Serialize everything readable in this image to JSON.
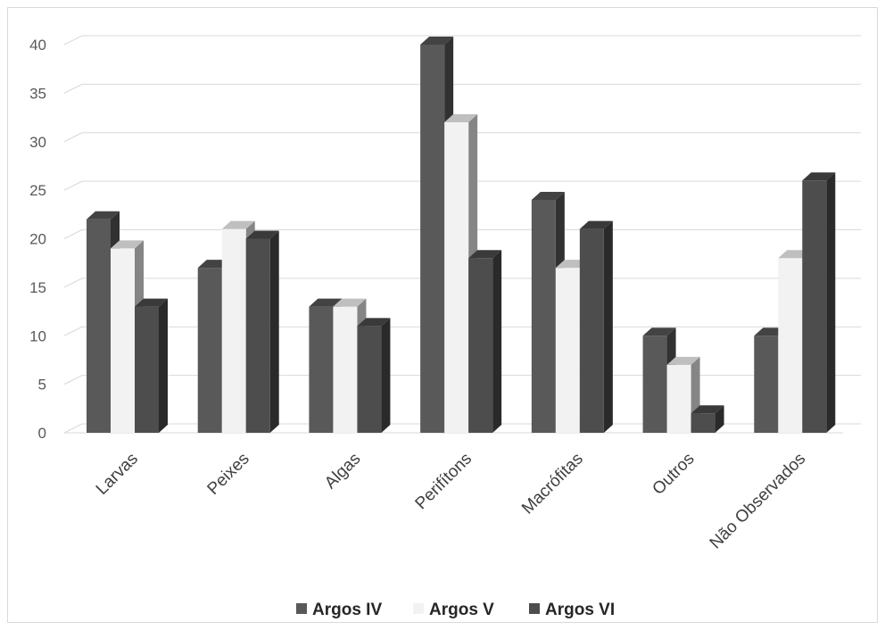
{
  "chart_data": {
    "type": "bar",
    "style": "3d-clustered-column",
    "categories": [
      "Larvas",
      "Peixes",
      "Algas",
      "Perifítons",
      "Macrófitas",
      "Outros",
      "Não Observados"
    ],
    "series": [
      {
        "name": "Argos IV",
        "values": [
          22,
          17,
          13,
          40,
          24,
          10,
          10
        ],
        "color": "#595959"
      },
      {
        "name": "Argos V",
        "values": [
          19,
          21,
          13,
          32,
          17,
          7,
          18
        ],
        "color": "#f2f2f2"
      },
      {
        "name": "Argos VI",
        "values": [
          13,
          20,
          11,
          18,
          21,
          2,
          26
        ],
        "color": "#4d4d4d"
      }
    ],
    "yticks": [
      "0",
      "5",
      "10",
      "15",
      "20",
      "25",
      "30",
      "35",
      "40"
    ],
    "ylim": [
      0,
      40
    ],
    "grid": true,
    "legend_position": "bottom"
  }
}
